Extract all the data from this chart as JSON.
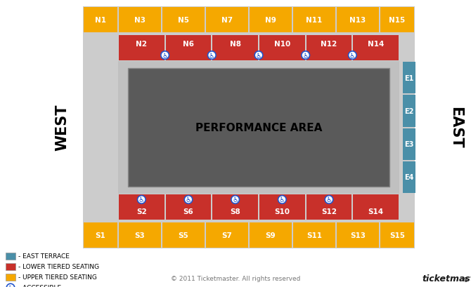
{
  "colors": {
    "gold": "#F5A800",
    "red": "#C8302A",
    "teal": "#4A8FA8",
    "dark_gray": "#5A5A5A",
    "light_gray": "#CCCCCC",
    "bg": "#FFFFFF"
  },
  "north_upper": [
    "N1",
    "N3",
    "N5",
    "N7",
    "N9",
    "N11",
    "N13",
    "N15"
  ],
  "north_lower": [
    "N2",
    "N6",
    "N8",
    "N10",
    "N12",
    "N14"
  ],
  "south_lower": [
    "S2",
    "S6",
    "S8",
    "S10",
    "S12",
    "S14"
  ],
  "south_upper": [
    "S1",
    "S3",
    "S5",
    "S7",
    "S9",
    "S11",
    "S13",
    "S15"
  ],
  "east_sections": [
    "E1",
    "E2",
    "E3",
    "E4"
  ],
  "footer_text": "© 2011 Ticketmaster. All rights reserved",
  "west_label": "WEST",
  "east_label": "EAST",
  "perf_label": "PERFORMANCE AREA",
  "legend": [
    {
      "color": "#4A8FA8",
      "label": "- EAST TERRACE"
    },
    {
      "color": "#C8302A",
      "label": "- LOWER TIERED SEATING"
    },
    {
      "color": "#F5A800",
      "label": "- UPPER TIERED SEATING"
    }
  ]
}
